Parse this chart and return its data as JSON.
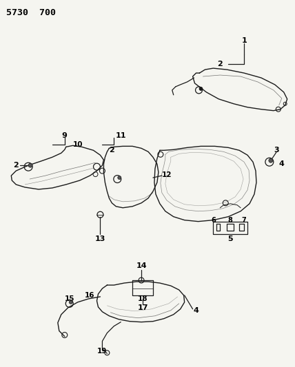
{
  "title": "5730  700",
  "bg_color": "#f5f5f0",
  "line_color": "#1a1a1a",
  "label_color": "#000000",
  "fig_w": 4.28,
  "fig_h": 5.33,
  "dpi": 100
}
